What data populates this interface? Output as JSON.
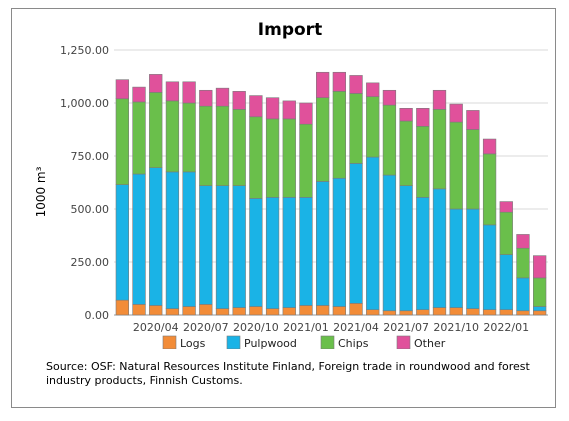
{
  "chart_data": {
    "type": "bar",
    "stacked": true,
    "title": "Import",
    "ylabel": "1000 m³",
    "xlabel": "",
    "ylim": [
      0,
      1250
    ],
    "yticks": [
      "0.00",
      "250.00",
      "500.00",
      "750.00",
      "1,000.00",
      "1,250.00"
    ],
    "ytick_values": [
      0,
      250,
      500,
      750,
      1000,
      1250
    ],
    "grid": true,
    "legend_placement": "bottom",
    "x": [
      "2020/02",
      "2020/03",
      "2020/04",
      "2020/05",
      "2020/06",
      "2020/07",
      "2020/08",
      "2020/09",
      "2020/10",
      "2020/11",
      "2020/12",
      "2021/01",
      "2021/02",
      "2021/03",
      "2021/04",
      "2021/05",
      "2021/06",
      "2021/07",
      "2021/08",
      "2021/09",
      "2021/10",
      "2021/11",
      "2021/12",
      "2022/01",
      "2022/02",
      "2022/03"
    ],
    "xtick_labels": [
      "2020/04",
      "2020/07",
      "2020/10",
      "2021/01",
      "2021/04",
      "2021/07",
      "2021/10",
      "2022/01"
    ],
    "series": [
      {
        "name": "Logs",
        "color": "#f28c38",
        "values": [
          70,
          50,
          45,
          30,
          40,
          50,
          30,
          35,
          40,
          30,
          35,
          45,
          45,
          40,
          55,
          25,
          20,
          20,
          25,
          35,
          35,
          30,
          25,
          25,
          20,
          20
        ]
      },
      {
        "name": "Pulpwood",
        "color": "#1ab3e6",
        "values": [
          545,
          615,
          650,
          645,
          635,
          560,
          580,
          575,
          510,
          525,
          520,
          510,
          585,
          605,
          660,
          720,
          640,
          590,
          530,
          560,
          465,
          470,
          400,
          260,
          155,
          20
        ]
      },
      {
        "name": "Chips",
        "color": "#6abf4b",
        "values": [
          405,
          340,
          355,
          335,
          325,
          375,
          375,
          360,
          385,
          370,
          370,
          345,
          395,
          410,
          330,
          285,
          330,
          305,
          335,
          375,
          410,
          375,
          335,
          200,
          140,
          135
        ]
      },
      {
        "name": "Other",
        "color": "#e0519b",
        "values": [
          90,
          70,
          85,
          90,
          100,
          75,
          85,
          85,
          100,
          100,
          85,
          100,
          120,
          90,
          85,
          65,
          70,
          60,
          85,
          90,
          85,
          90,
          70,
          50,
          65,
          105
        ]
      }
    ]
  },
  "source_text": "Source: OSF: Natural Resources Institute Finland, Foreign trade in roundwood and forest industry products, Finnish Customs."
}
